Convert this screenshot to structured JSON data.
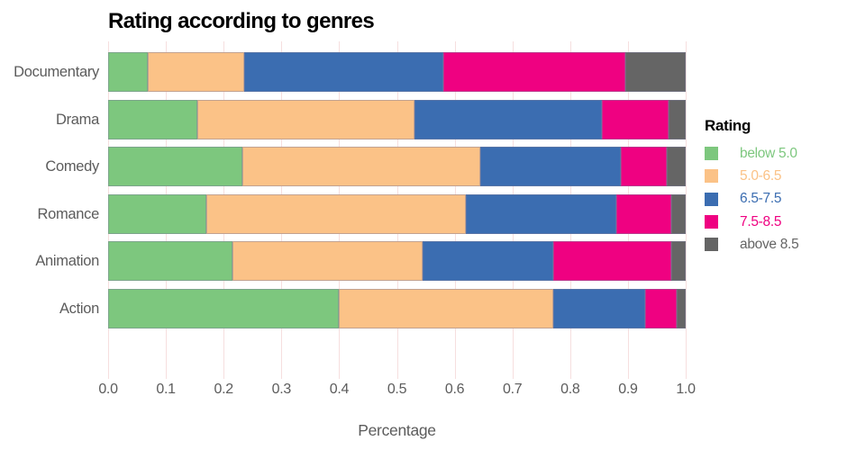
{
  "chart_data": {
    "type": "bar",
    "orientation": "horizontal",
    "stacked": true,
    "title": "Rating according to genres",
    "xlabel": "Percentage",
    "ylabel": "",
    "xlim": [
      0.0,
      1.0
    ],
    "x_ticks": [
      "0.0",
      "0.1",
      "0.2",
      "0.3",
      "0.4",
      "0.5",
      "0.6",
      "0.7",
      "0.8",
      "0.9",
      "1.0"
    ],
    "grid": true,
    "categories": [
      "Documentary",
      "Drama",
      "Comedy",
      "Romance",
      "Animation",
      "Action"
    ],
    "series": [
      {
        "name": "below 5.0",
        "color": "#7dc77e",
        "values": [
          0.068,
          0.155,
          0.232,
          0.17,
          0.215,
          0.4
        ]
      },
      {
        "name": "5.0-6.5",
        "color": "#fbc287",
        "values": [
          0.167,
          0.375,
          0.413,
          0.45,
          0.33,
          0.37
        ]
      },
      {
        "name": "6.5-7.5",
        "color": "#3b6db1",
        "values": [
          0.345,
          0.325,
          0.242,
          0.26,
          0.225,
          0.16
        ]
      },
      {
        "name": "7.5-8.5",
        "color": "#ef0181",
        "values": [
          0.315,
          0.115,
          0.08,
          0.095,
          0.205,
          0.055
        ]
      },
      {
        "name": "above 8.5",
        "color": "#656565",
        "values": [
          0.105,
          0.03,
          0.033,
          0.025,
          0.025,
          0.015
        ]
      }
    ],
    "legend": {
      "title": "Rating",
      "position": "right"
    }
  }
}
